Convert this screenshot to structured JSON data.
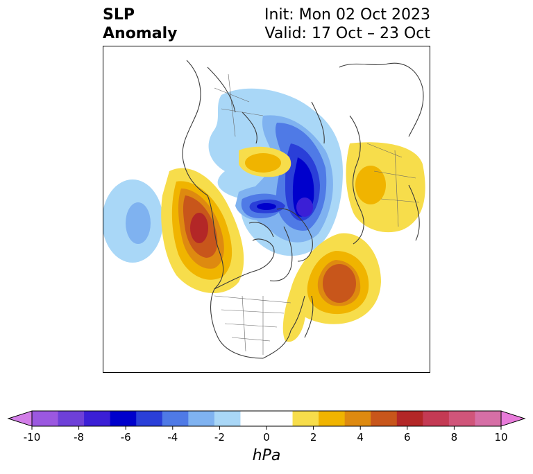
{
  "header": {
    "title_line1": "SLP",
    "title_line2": "Anomaly",
    "init_text": "Init: Mon 02 Oct 2023",
    "valid_text": "Valid: 17 Oct – 23 Oct"
  },
  "colorbar": {
    "unit": "hPa",
    "ticks": [
      "-10",
      "-8",
      "-6",
      "-4",
      "-2",
      "0",
      "2",
      "4",
      "6",
      "8",
      "10"
    ],
    "colors": [
      "#9b58e0",
      "#6e40d8",
      "#3b1fd6",
      "#0000cc",
      "#2a3fd8",
      "#4f7ae6",
      "#7fb2f0",
      "#a9d7f7",
      "#ffffff",
      "#ffffff",
      "#f7dd4b",
      "#f0b400",
      "#de8a10",
      "#c8561b",
      "#b32727",
      "#c43a54",
      "#d0557a",
      "#d66fa6"
    ],
    "end_low": "#d27ee8",
    "end_high": "#e77ad9"
  }
}
